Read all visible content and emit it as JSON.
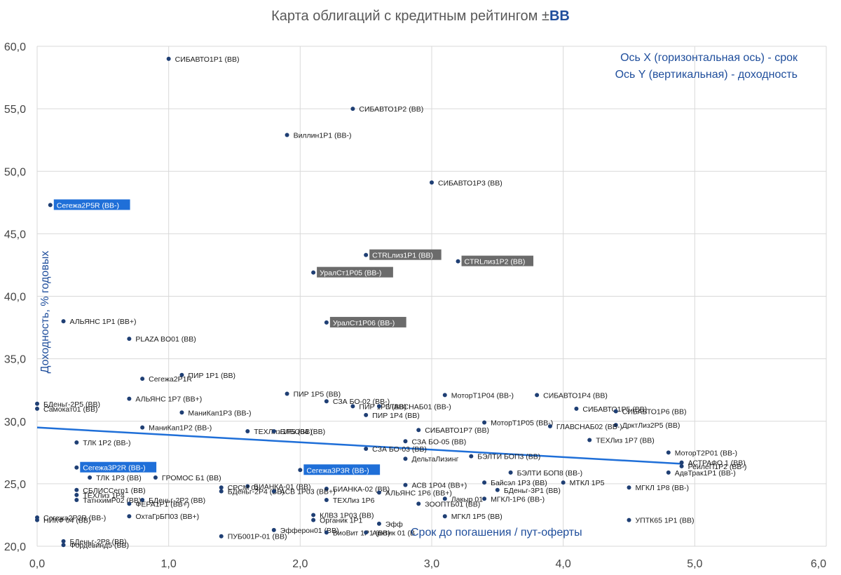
{
  "title": {
    "prefix": "Карта облигаций с кредитным рейтингом ±",
    "highlight": "BB"
  },
  "axis_notes": [
    "Ось X (горизонтальная ось) - срок",
    "Ось Y (вертикальная) - доходность"
  ],
  "colors": {
    "point": "#1f3f74",
    "trend": "#1f6fd8",
    "highlight_blue": "#1f6fd8",
    "highlight_gray": "#6b6b6b",
    "grid": "#d9d9d9"
  },
  "chart_data": {
    "type": "scatter",
    "title": "Карта облигаций с кредитным рейтингом ±BB",
    "xlabel": "Срок до погашения / пут-оферты",
    "ylabel": "Доходность, % годовых",
    "xlim": [
      0,
      6
    ],
    "ylim": [
      20,
      60
    ],
    "x_ticks": [
      "0,0",
      "1,0",
      "2,0",
      "3,0",
      "4,0",
      "5,0",
      "6,0"
    ],
    "y_ticks": [
      "20,0",
      "25,0",
      "30,0",
      "35,0",
      "40,0",
      "45,0",
      "50,0",
      "55,0",
      "60,0"
    ],
    "grid": true,
    "trendline": {
      "x": [
        0,
        4.9
      ],
      "y": [
        29.5,
        26.6
      ]
    },
    "points": [
      {
        "label": "СИБАВТО1Р1 (BB)",
        "x": 1.0,
        "y": 59.0
      },
      {
        "label": "СИБАВТО1Р2 (BB)",
        "x": 2.4,
        "y": 55.0
      },
      {
        "label": "Виллин1Р1 (BB-)",
        "x": 1.9,
        "y": 52.9
      },
      {
        "label": "СИБАВТО1Р3 (BB)",
        "x": 3.0,
        "y": 49.1
      },
      {
        "label": "Сегежа2Р5R (BB-)",
        "x": 0.1,
        "y": 47.3,
        "style": "blue"
      },
      {
        "label": "CTRLлиз1Р1 (BB)",
        "x": 2.5,
        "y": 43.3,
        "style": "gray"
      },
      {
        "label": "CTRLлиз1Р2 (BB)",
        "x": 3.2,
        "y": 42.8,
        "style": "gray"
      },
      {
        "label": "УралСт1Р05 (BB-)",
        "x": 2.1,
        "y": 41.9,
        "style": "gray"
      },
      {
        "label": "АЛЬЯНС 1Р1 (BB+)",
        "x": 0.2,
        "y": 38.0
      },
      {
        "label": "УралСт1Р06 (BB-)",
        "x": 2.2,
        "y": 37.9,
        "style": "gray"
      },
      {
        "label": "PLAZA BO01 (BB)",
        "x": 0.7,
        "y": 36.6
      },
      {
        "label": "ПИР 1Р1 (BB)",
        "x": 1.1,
        "y": 33.7
      },
      {
        "label": "Сегежа2Р1R",
        "x": 0.8,
        "y": 33.4
      },
      {
        "label": "ПИР 1Р5 (BB)",
        "x": 1.9,
        "y": 32.2
      },
      {
        "label": "МоторТ1Р04 (BB-)",
        "x": 3.1,
        "y": 32.1
      },
      {
        "label": "СИБАВТО1Р4 (BB)",
        "x": 3.8,
        "y": 32.1
      },
      {
        "label": "АЛЬЯНС 1Р7 (BB+)",
        "x": 0.7,
        "y": 31.8
      },
      {
        "label": "СЗА БО-02 (BB-)",
        "x": 2.2,
        "y": 31.6
      },
      {
        "label": "БДеньг-2Р5 (BB)",
        "x": 0.0,
        "y": 31.4
      },
      {
        "label": "ПИР 1Р3 (BB)",
        "x": 2.4,
        "y": 31.2
      },
      {
        "label": "ГЛАВСНАБ01 (BB-)",
        "x": 2.6,
        "y": 31.2
      },
      {
        "label": "СИБАВТО1Р5 (BB)",
        "x": 4.1,
        "y": 31.0
      },
      {
        "label": "Самокат01 (BB)",
        "x": 0.0,
        "y": 31.0
      },
      {
        "label": "СИБАВТО1Р6 (BB)",
        "x": 4.4,
        "y": 30.8
      },
      {
        "label": "МаниКап1Р3 (BB-)",
        "x": 1.1,
        "y": 30.7
      },
      {
        "label": "ПИР 1Р4 (BB)",
        "x": 2.5,
        "y": 30.5
      },
      {
        "label": "МоторТ1Р05 (BB-)",
        "x": 3.4,
        "y": 29.9
      },
      {
        "label": "ДрктЛиз2Р5 (BB)",
        "x": 4.4,
        "y": 29.7
      },
      {
        "label": "ГЛАВСНАБ02 (BB-)",
        "x": 3.9,
        "y": 29.6
      },
      {
        "label": "МаниКап1Р2 (BB-)",
        "x": 0.8,
        "y": 29.5
      },
      {
        "label": "СИБАВТО1Р7 (BB)",
        "x": 2.9,
        "y": 29.3
      },
      {
        "label": "ТЕХЛиз 1Р5 (BB)",
        "x": 1.6,
        "y": 29.2
      },
      {
        "label": "БЛБО04 (BB)",
        "x": 1.8,
        "y": 29.2
      },
      {
        "label": "ТЕХЛиз 1Р7 (BB)",
        "x": 4.2,
        "y": 28.5
      },
      {
        "label": "СЗА БО-05 (BB)",
        "x": 2.8,
        "y": 28.4
      },
      {
        "label": "ТЛК 1Р2 (BB-)",
        "x": 0.3,
        "y": 28.3
      },
      {
        "label": "СЗА БО-03 (BB)",
        "x": 2.5,
        "y": 27.8
      },
      {
        "label": "МоторТ2Р01 (BB-)",
        "x": 4.8,
        "y": 27.5
      },
      {
        "label": "БЭЛТИ БОП3 (BB)",
        "x": 3.3,
        "y": 27.2
      },
      {
        "label": "ДельтаЛизинг",
        "x": 2.8,
        "y": 27.0
      },
      {
        "label": "АСТРАФО 1 (BB)",
        "x": 4.9,
        "y": 26.7
      },
      {
        "label": "РеилеП1Р2 (BB-)",
        "x": 4.9,
        "y": 26.4
      },
      {
        "label": "Сегежа3Р2R (BB-)",
        "x": 0.3,
        "y": 26.3,
        "style": "blue"
      },
      {
        "label": "Сегежа3Р3R (BB-)",
        "x": 2.0,
        "y": 26.1,
        "style": "blue"
      },
      {
        "label": "АдвТрак1Р1 (BB-)",
        "x": 4.8,
        "y": 25.9
      },
      {
        "label": "БЭЛТИ БОП8 (BB-)",
        "x": 3.6,
        "y": 25.9
      },
      {
        "label": "ТЛК 1Р3 (BB)",
        "x": 0.4,
        "y": 25.5
      },
      {
        "label": "ГРОМОС Б1 (BB)",
        "x": 0.9,
        "y": 25.5
      },
      {
        "label": "МТКЛ 1Р5",
        "x": 4.0,
        "y": 25.1
      },
      {
        "label": "Байсэл 1Р3 (BB)",
        "x": 3.4,
        "y": 25.1
      },
      {
        "label": "АСВ 1Р04 (BB+)",
        "x": 2.8,
        "y": 24.9
      },
      {
        "label": "БИАНКА-01 (BB)",
        "x": 1.6,
        "y": 24.8
      },
      {
        "label": "МГКЛ 1Р8 (BB-)",
        "x": 4.5,
        "y": 24.7
      },
      {
        "label": "СРСМ 01",
        "x": 1.4,
        "y": 24.7
      },
      {
        "label": "БИАНКА-02 (BB)",
        "x": 2.2,
        "y": 24.6
      },
      {
        "label": "БДеньг-3Р1 (BB)",
        "x": 3.5,
        "y": 24.5
      },
      {
        "label": "СБЛИССегр1 (BB)",
        "x": 0.3,
        "y": 24.5
      },
      {
        "label": "БДеньг-2Р4 (BB)",
        "x": 1.4,
        "y": 24.4
      },
      {
        "label": "АСВ 1Р03 (BB+)",
        "x": 1.8,
        "y": 24.4
      },
      {
        "label": "АЛЬЯНС 1Р6 (BB+)",
        "x": 2.6,
        "y": 24.3
      },
      {
        "label": "ТЕХЛиз 1Р4",
        "x": 0.3,
        "y": 24.1
      },
      {
        "label": "МГКЛ-1Р6 (BB-)",
        "x": 3.4,
        "y": 23.8
      },
      {
        "label": "Лакыр 01",
        "x": 3.1,
        "y": 23.8
      },
      {
        "label": "ТатнхимР02 (BB)",
        "x": 0.3,
        "y": 23.7
      },
      {
        "label": "ТЕХЛиз 1Р6",
        "x": 2.2,
        "y": 23.7
      },
      {
        "label": "БДеньг-2Р2 (BB)",
        "x": 0.8,
        "y": 23.7
      },
      {
        "label": "ФЕРА1Р1 (BB+)",
        "x": 0.7,
        "y": 23.4
      },
      {
        "label": "ЗООПТБ01 (BB)",
        "x": 2.9,
        "y": 23.4
      },
      {
        "label": "КЛВЗ 1Р03 (BB)",
        "x": 2.1,
        "y": 22.5
      },
      {
        "label": "ОхтаГрБП03 (BB+)",
        "x": 0.7,
        "y": 22.4
      },
      {
        "label": "МГКЛ 1Р5 (BB)",
        "x": 3.1,
        "y": 22.4
      },
      {
        "label": "Сегежа2Р2R (BB-)",
        "x": 0.0,
        "y": 22.3
      },
      {
        "label": "Органик 1Р1",
        "x": 2.1,
        "y": 22.1
      },
      {
        "label": "УПТК65 1Р1 (BB)",
        "x": 4.5,
        "y": 22.1
      },
      {
        "label": "НИКФ 04 (BB)",
        "x": 0.0,
        "y": 22.1
      },
      {
        "label": "Эфф",
        "x": 2.6,
        "y": 21.8
      },
      {
        "label": "Эфферон01 (BB)",
        "x": 1.8,
        "y": 21.3
      },
      {
        "label": "ВиоВит 1Р1 (BB)",
        "x": 2.2,
        "y": 21.1
      },
      {
        "label": "Арктик 01 (B",
        "x": 2.5,
        "y": 21.1
      },
      {
        "label": "ПУБ001Р-01 (BB)",
        "x": 1.4,
        "y": 20.8
      },
      {
        "label": "БДеньг-2Р8 (BB)",
        "x": 0.2,
        "y": 20.4
      },
      {
        "label": "Фордевинд5 (BB)",
        "x": 0.2,
        "y": 20.1
      }
    ]
  }
}
